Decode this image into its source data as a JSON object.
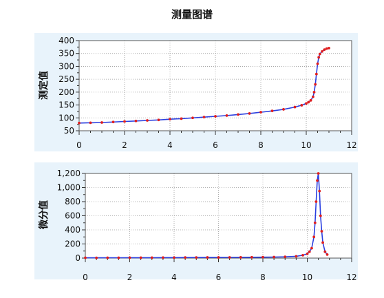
{
  "title": "测量图谱",
  "colors": {
    "panel_bg": "#e8f3fb",
    "line": "#2a3fe0",
    "marker": "#e01f1f",
    "grid": "#9a9a9a"
  },
  "chart_data": [
    {
      "type": "line",
      "title": "测量图谱",
      "ylabel": "测定值",
      "xlabel": "",
      "xlim": [
        0,
        12
      ],
      "ylim": [
        50,
        400
      ],
      "x_ticks": [
        0,
        2,
        4,
        6,
        8,
        10,
        12
      ],
      "y_ticks": [
        50,
        100,
        150,
        200,
        250,
        300,
        350,
        400
      ],
      "y_tick_labels": [
        "50",
        "100",
        "150",
        "200",
        "250",
        "300",
        "350",
        "400"
      ],
      "grid": true,
      "series": [
        {
          "x": [
            0,
            0.5,
            1,
            1.5,
            2,
            2.5,
            3,
            3.5,
            4,
            4.5,
            5,
            5.5,
            6,
            6.5,
            7,
            7.5,
            8,
            8.5,
            9,
            9.5,
            9.8,
            10,
            10.1,
            10.2,
            10.3,
            10.35,
            10.4,
            10.45,
            10.5,
            10.55,
            10.6,
            10.7,
            10.8,
            10.9,
            11
          ],
          "values": [
            80,
            81,
            82,
            84,
            86,
            88,
            90,
            92,
            95,
            97,
            100,
            103,
            106,
            109,
            113,
            117,
            122,
            127,
            133,
            142,
            149,
            156,
            161,
            168,
            182,
            200,
            230,
            270,
            310,
            335,
            348,
            358,
            365,
            369,
            371
          ]
        }
      ]
    },
    {
      "type": "line",
      "ylabel": "微分值",
      "xlabel": "",
      "xlim": [
        0,
        12
      ],
      "ylim": [
        0,
        1200
      ],
      "x_ticks": [
        0,
        2,
        4,
        6,
        8,
        10,
        12
      ],
      "y_ticks": [
        0,
        200,
        400,
        600,
        800,
        1000,
        1200
      ],
      "y_tick_labels": [
        "0",
        "200",
        "400",
        "600",
        "800",
        "1,000",
        "1,200"
      ],
      "grid": true,
      "series": [
        {
          "x": [
            0,
            0.5,
            1,
            1.5,
            2,
            2.5,
            3,
            3.5,
            4,
            4.5,
            5,
            5.5,
            6,
            6.5,
            7,
            7.5,
            8,
            8.5,
            9,
            9.5,
            9.8,
            10,
            10.1,
            10.2,
            10.3,
            10.35,
            10.4,
            10.45,
            10.5,
            10.55,
            10.6,
            10.65,
            10.7,
            10.8,
            10.9
          ],
          "values": [
            5,
            4,
            5,
            5,
            6,
            6,
            6,
            7,
            7,
            8,
            8,
            9,
            9,
            10,
            11,
            12,
            13,
            15,
            18,
            25,
            40,
            60,
            90,
            140,
            300,
            500,
            800,
            1100,
            1200,
            950,
            600,
            380,
            220,
            90,
            50
          ]
        }
      ]
    }
  ]
}
